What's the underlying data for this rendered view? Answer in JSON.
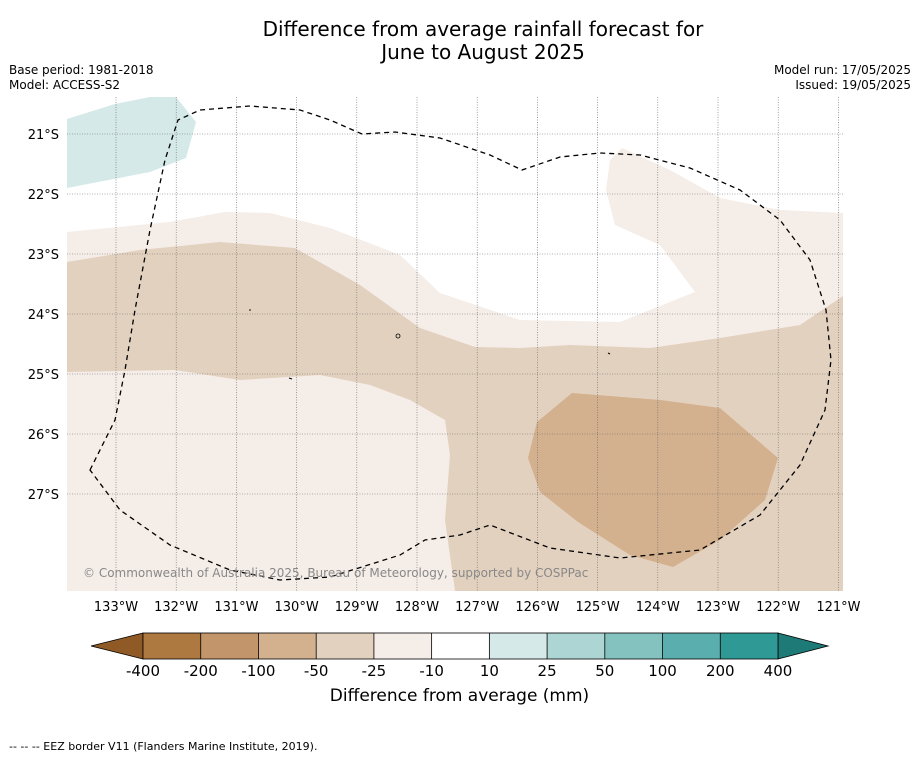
{
  "title_line1": "Difference from average rainfall forecast for",
  "title_line2": "June to August 2025",
  "meta_left": [
    "Base period: 1981-2018",
    "Model: ACCESS-S2"
  ],
  "meta_right": [
    "Model run: 17/05/2025",
    "Issued: 19/05/2025"
  ],
  "lat_labels": [
    "21°S",
    "22°S",
    "23°S",
    "24°S",
    "25°S",
    "26°S",
    "27°S"
  ],
  "lon_labels": [
    "133°W",
    "132°W",
    "131°W",
    "130°W",
    "129°W",
    "128°W",
    "127°W",
    "126°W",
    "125°W",
    "124°W",
    "123°W",
    "122°W",
    "121°W"
  ],
  "copyright": "© Commonwealth of Australia 2025, Bureau of Meteorology, supported by COSPPac",
  "colorbar": {
    "title": "Difference from average (mm)",
    "tick_labels": [
      "-400",
      "-200",
      "-100",
      "-50",
      "-25",
      "-10",
      "10",
      "25",
      "50",
      "100",
      "200",
      "400"
    ],
    "colors": [
      "#ad7941",
      "#c3956a",
      "#d3b08e",
      "#e3d1bf",
      "#f5ede8",
      "#ffffff",
      "#d4e9e8",
      "#acd5d4",
      "#84c2bf",
      "#5aaead",
      "#2f9996"
    ],
    "under_color": "#8f5a26",
    "over_color": "#1e7a77"
  },
  "legend_footer": "-- -- -- EEZ border V11 (Flanders Marine Institute, 2019)."
}
